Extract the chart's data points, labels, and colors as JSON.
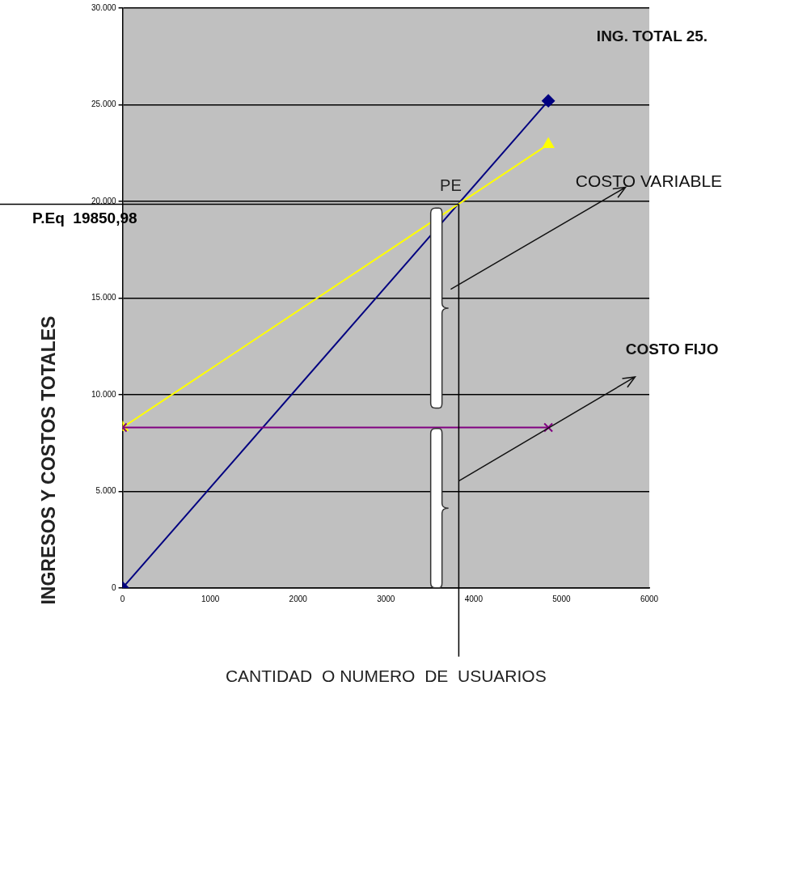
{
  "chart_data": {
    "type": "line",
    "xlabel": "CANTIDAD  O NUMERO  DE  USUARIOS",
    "ylabel": "INGRESOS Y COSTOS TOTALES",
    "xlim": [
      0,
      6000
    ],
    "xticks": [
      0,
      1000,
      2000,
      3000,
      4000,
      5000,
      6000
    ],
    "ylim": [
      0,
      30000
    ],
    "yticks": [
      0,
      {
        "value": 5000,
        "label": "5.000"
      },
      {
        "value": 10000,
        "label": "10.000"
      },
      {
        "value": 15000,
        "label": "15.000"
      },
      {
        "value": 20000,
        "label": "20.000"
      },
      {
        "value": 25000,
        "label": "25.000"
      },
      {
        "value": 30000,
        "label": "30.000"
      }
    ],
    "grid": "y",
    "legend": false,
    "line_style": "solid",
    "x": [
      0,
      4850
    ],
    "series": [
      {
        "color": "#000080",
        "values": [
          0,
          25200
        ],
        "marker": "diamond"
      },
      {
        "color": "#ffff00",
        "values": [
          8300,
          22950
        ],
        "marker": "triangle"
      },
      {
        "color": "#800080",
        "values": [
          8300,
          8300
        ],
        "marker": "cross"
      }
    ],
    "ref_lines": [
      {
        "axis": "y",
        "value": 19850.98,
        "label": "P.Eq  19850,98",
        "color": "#000000"
      },
      {
        "axis": "x",
        "value": 3830,
        "label": "PE",
        "color": "#000000"
      }
    ],
    "annotations": [
      "ING. TOTAL 25.",
      "COSTO VARIABLE",
      {
        "text": "COSTO FIJO",
        "x": 3830,
        "y": 5530
      }
    ]
  }
}
